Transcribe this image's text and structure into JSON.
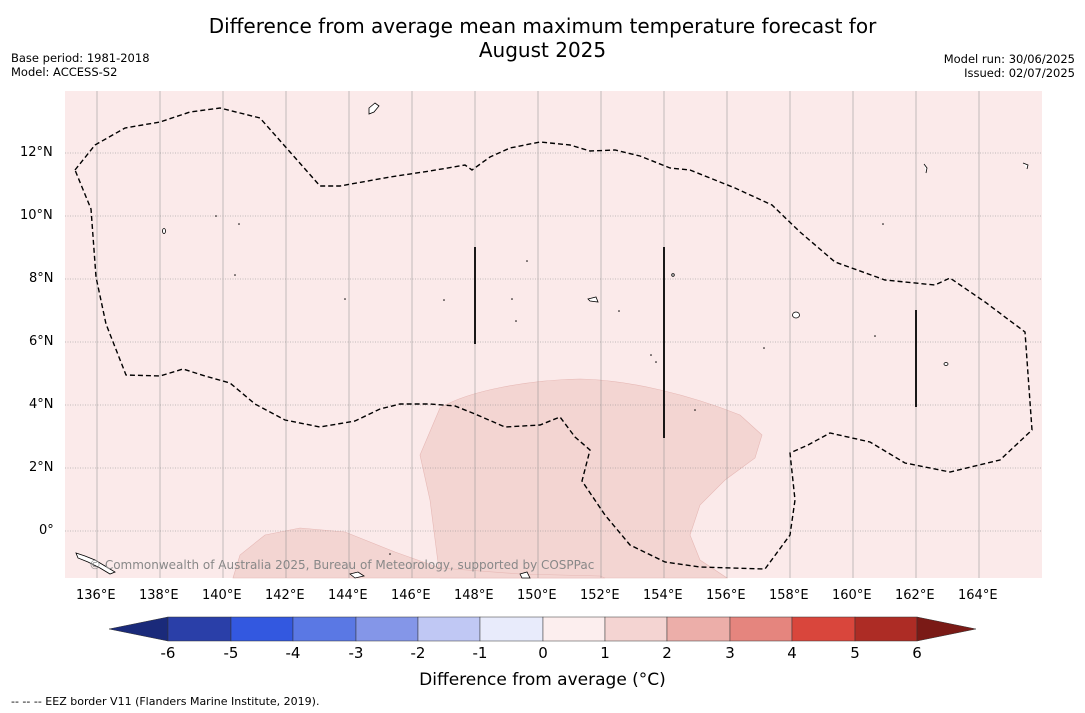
{
  "title_line1": "Difference from average mean maximum temperature forecast for",
  "title_line2": "August 2025",
  "base_period": "Base period: 1981-2018",
  "model": "Model: ACCESS-S2",
  "model_run": "Model run: 30/06/2025",
  "issued": "Issued: 02/07/2025",
  "copyright": "© Commonwealth of Australia 2025, Bureau of Meteorology, supported by COSPPac",
  "footnote": "-- -- -- EEZ border V11 (Flanders Marine Institute, 2019).",
  "colorbar": {
    "title": "Difference from average (°C)",
    "ticks": [
      "-6",
      "-5",
      "-4",
      "-3",
      "-2",
      "-1",
      "0",
      "1",
      "2",
      "3",
      "4",
      "5",
      "6"
    ],
    "colors": [
      "#2a3fa8",
      "#3358e0",
      "#5a78e4",
      "#8496e8",
      "#c0c8f4",
      "#e8ebfb",
      "#fceeee",
      "#f4d4d2",
      "#ecaea9",
      "#e5857e",
      "#d9463c",
      "#ad2c25"
    ],
    "under_color": "#1a2a7a",
    "over_color": "#7a1a16"
  },
  "map": {
    "lon_labels": [
      "136°E",
      "138°E",
      "140°E",
      "142°E",
      "144°E",
      "146°E",
      "148°E",
      "150°E",
      "152°E",
      "154°E",
      "156°E",
      "158°E",
      "160°E",
      "162°E",
      "164°E"
    ],
    "lat_labels": [
      "12°N",
      "10°N",
      "8°N",
      "6°N",
      "4°N",
      "2°N",
      "0°"
    ],
    "background_color": "#fbeaea",
    "anomaly_1_2_color": "#f3d5d2"
  }
}
